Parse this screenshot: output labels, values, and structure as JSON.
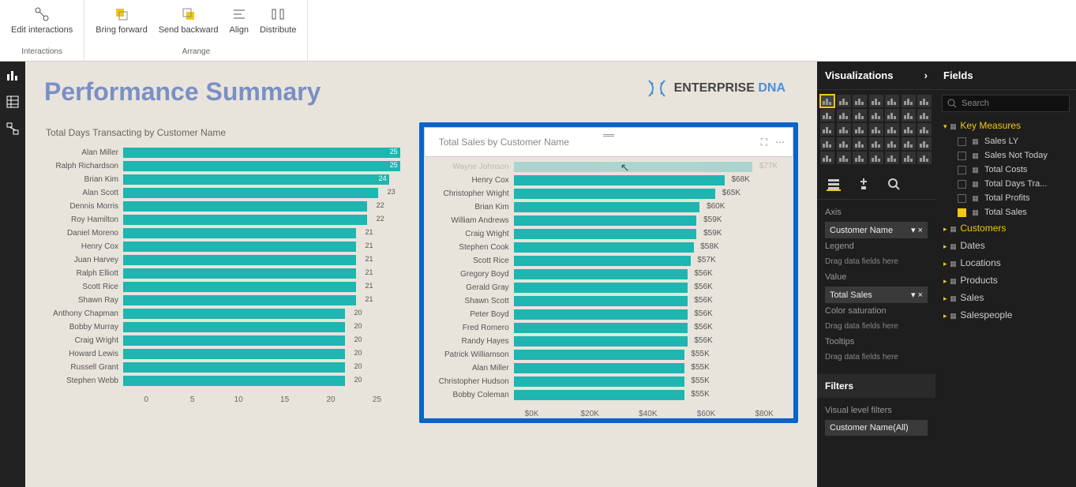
{
  "ribbon": {
    "groups": [
      {
        "name": "Interactions",
        "buttons": [
          {
            "label": "Edit interactions",
            "icon": "interactions"
          }
        ]
      },
      {
        "name": "Arrange",
        "buttons": [
          {
            "label": "Bring forward",
            "icon": "front",
            "drop": true
          },
          {
            "label": "Send backward",
            "icon": "back",
            "drop": true
          },
          {
            "label": "Align",
            "icon": "align",
            "drop": true
          },
          {
            "label": "Distribute",
            "icon": "distribute",
            "drop": true
          }
        ]
      }
    ]
  },
  "page": {
    "title": "Performance Summary",
    "logo_brand": "ENTERPRISE",
    "logo_dna": "DNA"
  },
  "chart1": {
    "title": "Total Days Transacting by Customer Name",
    "max": 25,
    "color": "#1fb5b0",
    "xticks": [
      "0",
      "5",
      "10",
      "15",
      "20",
      "25"
    ],
    "rows": [
      {
        "name": "Alan Miller",
        "v": 25,
        "inside": true
      },
      {
        "name": "Ralph Richardson",
        "v": 25,
        "inside": true
      },
      {
        "name": "Brian Kim",
        "v": 24,
        "inside": true
      },
      {
        "name": "Alan Scott",
        "v": 23
      },
      {
        "name": "Dennis Morris",
        "v": 22
      },
      {
        "name": "Roy Hamilton",
        "v": 22
      },
      {
        "name": "Daniel Moreno",
        "v": 21
      },
      {
        "name": "Henry Cox",
        "v": 21
      },
      {
        "name": "Juan Harvey",
        "v": 21
      },
      {
        "name": "Ralph Elliott",
        "v": 21
      },
      {
        "name": "Scott Rice",
        "v": 21
      },
      {
        "name": "Shawn Ray",
        "v": 21
      },
      {
        "name": "Anthony Chapman",
        "v": 20
      },
      {
        "name": "Bobby Murray",
        "v": 20
      },
      {
        "name": "Craig Wright",
        "v": 20
      },
      {
        "name": "Howard Lewis",
        "v": 20
      },
      {
        "name": "Russell Grant",
        "v": 20
      },
      {
        "name": "Stephen Webb",
        "v": 20
      }
    ]
  },
  "chart2": {
    "title": "Total Sales by Customer Name",
    "max": 80,
    "color": "#1fb5b0",
    "xticks": [
      "$0K",
      "$20K",
      "$40K",
      "$60K",
      "$80K"
    ],
    "rows": [
      {
        "name": "Wayne Johnson",
        "v": 77,
        "label": "$77K",
        "hid": true
      },
      {
        "name": "Henry Cox",
        "v": 68,
        "label": "$68K"
      },
      {
        "name": "Christopher Wright",
        "v": 65,
        "label": "$65K"
      },
      {
        "name": "Brian Kim",
        "v": 60,
        "label": "$60K"
      },
      {
        "name": "William Andrews",
        "v": 59,
        "label": "$59K"
      },
      {
        "name": "Craig Wright",
        "v": 59,
        "label": "$59K"
      },
      {
        "name": "Stephen Cook",
        "v": 58,
        "label": "$58K"
      },
      {
        "name": "Scott Rice",
        "v": 57,
        "label": "$57K"
      },
      {
        "name": "Gregory Boyd",
        "v": 56,
        "label": "$56K"
      },
      {
        "name": "Gerald Gray",
        "v": 56,
        "label": "$56K"
      },
      {
        "name": "Shawn Scott",
        "v": 56,
        "label": "$56K"
      },
      {
        "name": "Peter Boyd",
        "v": 56,
        "label": "$56K"
      },
      {
        "name": "Fred Romero",
        "v": 56,
        "label": "$56K"
      },
      {
        "name": "Randy Hayes",
        "v": 56,
        "label": "$56K"
      },
      {
        "name": "Patrick Williamson",
        "v": 55,
        "label": "$55K"
      },
      {
        "name": "Alan Miller",
        "v": 55,
        "label": "$55K"
      },
      {
        "name": "Christopher Hudson",
        "v": 55,
        "label": "$55K"
      },
      {
        "name": "Bobby Coleman",
        "v": 55,
        "label": "$55K"
      }
    ]
  },
  "viz": {
    "title": "Visualizations",
    "axis_label": "Axis",
    "axis_field": "Customer Name",
    "legend_label": "Legend",
    "legend_empty": "Drag data fields here",
    "value_label": "Value",
    "value_field": "Total Sales",
    "sat_label": "Color saturation",
    "sat_empty": "Drag data fields here",
    "tooltip_label": "Tooltips",
    "tooltip_empty": "Drag data fields here",
    "filters_title": "Filters",
    "vlf_label": "Visual level filters",
    "vlf_field": "Customer Name(All)"
  },
  "fields": {
    "title": "Fields",
    "search": "Search",
    "tables": [
      {
        "name": "Key Measures",
        "expanded": true,
        "highlight": true,
        "items": [
          {
            "name": "Sales LY",
            "checked": false
          },
          {
            "name": "Sales Not Today",
            "checked": false
          },
          {
            "name": "Total Costs",
            "checked": false
          },
          {
            "name": "Total Days Tra...",
            "checked": false
          },
          {
            "name": "Total Profits",
            "checked": false
          },
          {
            "name": "Total Sales",
            "checked": true
          }
        ]
      },
      {
        "name": "Customers",
        "expanded": false,
        "highlight": true
      },
      {
        "name": "Dates",
        "expanded": false
      },
      {
        "name": "Locations",
        "expanded": false
      },
      {
        "name": "Products",
        "expanded": false
      },
      {
        "name": "Sales",
        "expanded": false
      },
      {
        "name": "Salespeople",
        "expanded": false
      }
    ]
  }
}
